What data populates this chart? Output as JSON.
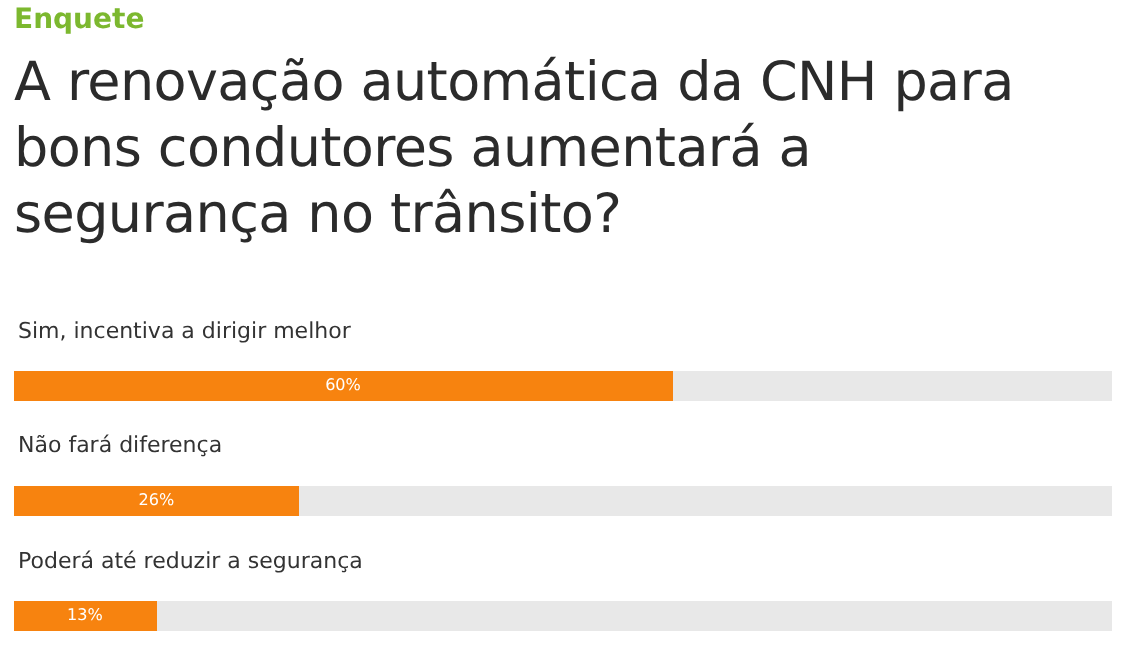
{
  "chart_data": {
    "type": "bar",
    "orientation": "horizontal",
    "stacked": true,
    "subtitle": "Enquete",
    "title": "A renovação automática da CNH para bons condutores aumentará a segurança no trânsito?",
    "categories": [
      "Sim, incentiva a dirigir melhor",
      "Não fará diferença",
      "Poderá até reduzir a segurança"
    ],
    "series": [
      {
        "color": "#f7830f",
        "values": [
          60,
          26,
          13
        ],
        "value_labels": [
          "60%",
          "26%",
          "13%"
        ]
      },
      {
        "color": "#e8e8e8",
        "values": [
          40,
          74,
          87
        ]
      }
    ],
    "xlim": [
      0,
      100
    ],
    "tick_labels": false
  }
}
